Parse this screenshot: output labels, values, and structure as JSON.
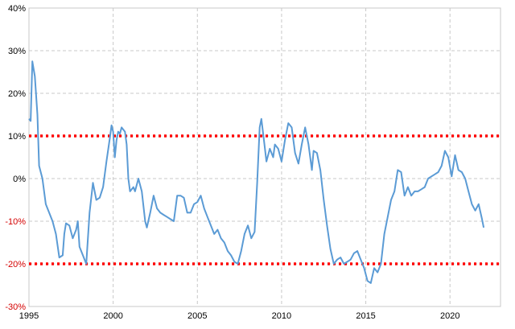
{
  "chart_data": {
    "type": "line",
    "title": "",
    "xlabel": "",
    "ylabel": "",
    "x_ticks": [
      1995,
      2000,
      2005,
      2010,
      2015,
      2020
    ],
    "x_tick_labels": [
      "1995",
      "2000",
      "2005",
      "2010",
      "2015",
      "2020"
    ],
    "y_ticks": [
      -30,
      -20,
      -10,
      0,
      10,
      20,
      30,
      40
    ],
    "y_tick_labels": [
      "-30%",
      "-20%",
      "-10%",
      "0%",
      "10%",
      "20%",
      "30%",
      "40%"
    ],
    "y_tick_colors": [
      "#d40000",
      "#d40000",
      "#d40000",
      "#000000",
      "#000000",
      "#000000",
      "#000000",
      "#000000"
    ],
    "xlim": [
      1995,
      2023
    ],
    "ylim": [
      -30,
      40
    ],
    "grid": true,
    "grid_style": "dashed",
    "line_color": "#5b9bd5",
    "thresholds": [
      {
        "value": 10,
        "color": "#ff0000",
        "style": "dotted"
      },
      {
        "value": -20,
        "color": "#ff0000",
        "style": "dotted"
      }
    ],
    "series": [
      {
        "points": [
          [
            1995.0,
            14
          ],
          [
            1995.1,
            13.5
          ],
          [
            1995.2,
            27.5
          ],
          [
            1995.35,
            24
          ],
          [
            1995.5,
            15
          ],
          [
            1995.6,
            3
          ],
          [
            1995.8,
            0
          ],
          [
            1996.0,
            -6
          ],
          [
            1996.2,
            -8
          ],
          [
            1996.4,
            -10
          ],
          [
            1996.6,
            -13
          ],
          [
            1996.8,
            -18.5
          ],
          [
            1997.0,
            -18
          ],
          [
            1997.1,
            -13
          ],
          [
            1997.2,
            -10.5
          ],
          [
            1997.4,
            -11
          ],
          [
            1997.6,
            -14
          ],
          [
            1997.8,
            -12
          ],
          [
            1997.9,
            -10
          ],
          [
            1998.0,
            -16
          ],
          [
            1998.2,
            -18
          ],
          [
            1998.4,
            -20
          ],
          [
            1998.6,
            -8
          ],
          [
            1998.8,
            -1
          ],
          [
            1999.0,
            -5
          ],
          [
            1999.2,
            -4.5
          ],
          [
            1999.4,
            -2
          ],
          [
            1999.6,
            4
          ],
          [
            1999.8,
            9.5
          ],
          [
            1999.9,
            12.5
          ],
          [
            2000.0,
            11
          ],
          [
            2000.1,
            5
          ],
          [
            2000.2,
            9
          ],
          [
            2000.3,
            11
          ],
          [
            2000.4,
            10.5
          ],
          [
            2000.5,
            12
          ],
          [
            2000.7,
            11
          ],
          [
            2000.8,
            8
          ],
          [
            2000.9,
            0
          ],
          [
            2001.0,
            -3
          ],
          [
            2001.2,
            -2
          ],
          [
            2001.3,
            -3
          ],
          [
            2001.5,
            0
          ],
          [
            2001.7,
            -3
          ],
          [
            2001.9,
            -10
          ],
          [
            2002.0,
            -11.5
          ],
          [
            2002.2,
            -8
          ],
          [
            2002.4,
            -4
          ],
          [
            2002.6,
            -7
          ],
          [
            2002.8,
            -8
          ],
          [
            2003.0,
            -8.5
          ],
          [
            2003.2,
            -9
          ],
          [
            2003.4,
            -9.5
          ],
          [
            2003.6,
            -10
          ],
          [
            2003.8,
            -4
          ],
          [
            2004.0,
            -4
          ],
          [
            2004.2,
            -4.5
          ],
          [
            2004.4,
            -8
          ],
          [
            2004.6,
            -8
          ],
          [
            2004.8,
            -6
          ],
          [
            2005.0,
            -5.5
          ],
          [
            2005.2,
            -4
          ],
          [
            2005.4,
            -7
          ],
          [
            2005.6,
            -9
          ],
          [
            2005.8,
            -11
          ],
          [
            2006.0,
            -13
          ],
          [
            2006.2,
            -12
          ],
          [
            2006.4,
            -14
          ],
          [
            2006.6,
            -15
          ],
          [
            2006.8,
            -17
          ],
          [
            2007.0,
            -18
          ],
          [
            2007.2,
            -19.5
          ],
          [
            2007.4,
            -20
          ],
          [
            2007.6,
            -17
          ],
          [
            2007.8,
            -13
          ],
          [
            2008.0,
            -11
          ],
          [
            2008.2,
            -14
          ],
          [
            2008.4,
            -12.5
          ],
          [
            2008.55,
            -1
          ],
          [
            2008.7,
            12
          ],
          [
            2008.8,
            14
          ],
          [
            2008.95,
            9
          ],
          [
            2009.1,
            4
          ],
          [
            2009.3,
            7
          ],
          [
            2009.5,
            5
          ],
          [
            2009.6,
            8
          ],
          [
            2009.8,
            7
          ],
          [
            2010.0,
            4
          ],
          [
            2010.2,
            9
          ],
          [
            2010.4,
            13
          ],
          [
            2010.6,
            12
          ],
          [
            2010.8,
            6
          ],
          [
            2011.0,
            3.5
          ],
          [
            2011.2,
            8
          ],
          [
            2011.4,
            12
          ],
          [
            2011.6,
            8
          ],
          [
            2011.8,
            2
          ],
          [
            2011.9,
            6.5
          ],
          [
            2012.1,
            6
          ],
          [
            2012.3,
            2
          ],
          [
            2012.5,
            -5
          ],
          [
            2012.7,
            -11
          ],
          [
            2012.9,
            -16.5
          ],
          [
            2013.1,
            -20
          ],
          [
            2013.3,
            -19
          ],
          [
            2013.5,
            -18.5
          ],
          [
            2013.7,
            -20
          ],
          [
            2013.9,
            -19.5
          ],
          [
            2014.1,
            -19
          ],
          [
            2014.3,
            -17.5
          ],
          [
            2014.5,
            -17
          ],
          [
            2014.7,
            -19
          ],
          [
            2014.9,
            -21
          ],
          [
            2015.1,
            -24
          ],
          [
            2015.3,
            -24.5
          ],
          [
            2015.5,
            -21
          ],
          [
            2015.7,
            -22
          ],
          [
            2015.9,
            -20
          ],
          [
            2016.1,
            -13
          ],
          [
            2016.3,
            -9
          ],
          [
            2016.5,
            -5
          ],
          [
            2016.7,
            -3
          ],
          [
            2016.9,
            2
          ],
          [
            2017.1,
            1.5
          ],
          [
            2017.3,
            -4
          ],
          [
            2017.5,
            -2
          ],
          [
            2017.7,
            -4
          ],
          [
            2017.9,
            -3
          ],
          [
            2018.1,
            -3
          ],
          [
            2018.3,
            -2.5
          ],
          [
            2018.5,
            -2
          ],
          [
            2018.7,
            0
          ],
          [
            2018.9,
            0.5
          ],
          [
            2019.1,
            1
          ],
          [
            2019.3,
            1.5
          ],
          [
            2019.5,
            3
          ],
          [
            2019.7,
            6.5
          ],
          [
            2019.9,
            5
          ],
          [
            2020.1,
            0.5
          ],
          [
            2020.3,
            5.5
          ],
          [
            2020.5,
            2
          ],
          [
            2020.7,
            1.5
          ],
          [
            2020.9,
            0
          ],
          [
            2021.1,
            -3
          ],
          [
            2021.3,
            -6
          ],
          [
            2021.5,
            -7.5
          ],
          [
            2021.7,
            -6
          ],
          [
            2021.9,
            -9.5
          ],
          [
            2022.0,
            -11.5
          ]
        ]
      }
    ]
  }
}
